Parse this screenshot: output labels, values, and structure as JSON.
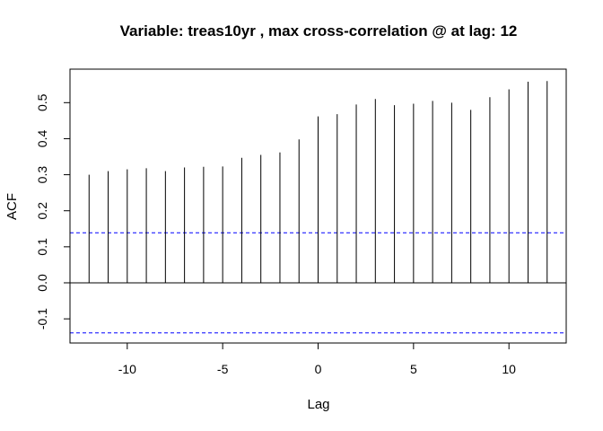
{
  "chart_data": {
    "type": "bar",
    "title": "Variable: treas10yr , max cross-correlation @ at lag: 12",
    "xlabel": "Lag",
    "ylabel": "ACF",
    "x": [
      -12,
      -11,
      -10,
      -9,
      -8,
      -7,
      -6,
      -5,
      -4,
      -3,
      -2,
      -1,
      0,
      1,
      2,
      3,
      4,
      5,
      6,
      7,
      8,
      9,
      10,
      11,
      12
    ],
    "values": [
      0.3,
      0.31,
      0.315,
      0.318,
      0.31,
      0.32,
      0.322,
      0.323,
      0.347,
      0.355,
      0.362,
      0.398,
      0.462,
      0.468,
      0.495,
      0.51,
      0.493,
      0.497,
      0.505,
      0.5,
      0.48,
      0.515,
      0.537,
      0.558,
      0.56
    ],
    "confidence_bounds": [
      0.139,
      -0.139
    ],
    "xlim": [
      -13,
      13
    ],
    "ylim": [
      -0.167,
      0.593
    ],
    "xticks": [
      -10,
      -5,
      0,
      5,
      10
    ],
    "xtick_labels": [
      "-10",
      "-5",
      "0",
      "5",
      "10"
    ],
    "yticks": [
      -0.1,
      0.0,
      0.1,
      0.2,
      0.3,
      0.4,
      0.5
    ],
    "ytick_labels": [
      "-0.1",
      "0.0",
      "0.1",
      "0.2",
      "0.3",
      "0.4",
      "0.5"
    ],
    "grid": false,
    "colors": {
      "bars": "#000000",
      "zero_line": "#000000",
      "confidence_lines": "#0000ff",
      "frame": "#000000"
    }
  }
}
